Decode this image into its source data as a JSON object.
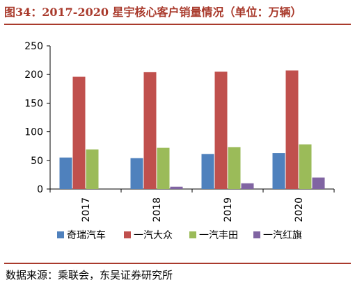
{
  "figure": {
    "title": "图34：2017-2020 星宇核心客户销量情况（单位：万辆）",
    "source": "数据来源：乘联会，东吴证券研究所"
  },
  "chart_data": {
    "type": "bar",
    "categories": [
      "2017",
      "2018",
      "2019",
      "2020"
    ],
    "series": [
      {
        "name": "奇瑞汽车",
        "color": "#4f81bd",
        "values": [
          55,
          54,
          61,
          63
        ]
      },
      {
        "name": "一汽大众",
        "color": "#c0504d",
        "values": [
          196,
          204,
          205,
          207
        ]
      },
      {
        "name": "一汽丰田",
        "color": "#9bbb59",
        "values": [
          69,
          72,
          73,
          78
        ]
      },
      {
        "name": "一汽红旗",
        "color": "#8064a2",
        "values": [
          0,
          4,
          10,
          20
        ]
      }
    ],
    "ylim": [
      0,
      250
    ],
    "yticks": [
      0,
      50,
      100,
      150,
      200,
      250
    ],
    "grid": false,
    "legend_position": "bottom"
  }
}
